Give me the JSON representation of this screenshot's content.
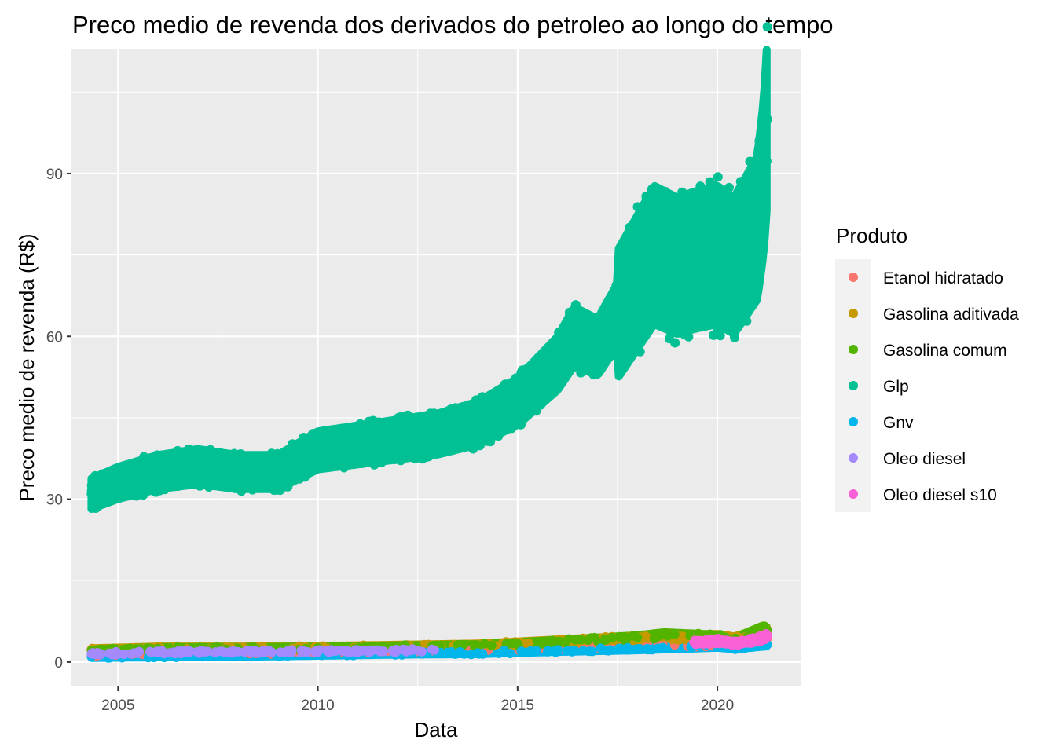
{
  "chart_data": {
    "type": "scatter",
    "title": "Preco medio de revenda dos derivados do petroleo ao longo do tempo",
    "xlabel": "Data",
    "ylabel": "Preco medio de revenda (R$)",
    "x_ticks": [
      "2005",
      "2010",
      "2015",
      "2020"
    ],
    "y_ticks": [
      "0",
      "30",
      "60",
      "90"
    ],
    "xlim": [
      "2003-11-01",
      "2022-02-01"
    ],
    "ylim": [
      -4.5,
      113
    ],
    "grid": true,
    "background": "#ebebeb",
    "legend": {
      "title": "Produto",
      "position": "right"
    },
    "series": [
      {
        "name": "Etanol hidratado",
        "color": "#F8766D",
        "points": [
          [
            "2004-05-01",
            1.3
          ],
          [
            "2006-01-01",
            1.8
          ],
          [
            "2008-01-01",
            1.6
          ],
          [
            "2010-01-01",
            1.7
          ],
          [
            "2012-01-01",
            2.1
          ],
          [
            "2014-01-01",
            2.2
          ],
          [
            "2016-01-01",
            2.6
          ],
          [
            "2018-01-01",
            2.9
          ],
          [
            "2019-06-01",
            3.1
          ],
          [
            "2020-03-01",
            3.3
          ],
          [
            "2020-06-01",
            2.7
          ],
          [
            "2021-04-01",
            4.4
          ]
        ]
      },
      {
        "name": "Gasolina aditivada",
        "color": "#C49A00",
        "points": [
          [
            "2004-05-01",
            2.3
          ],
          [
            "2006-01-01",
            2.6
          ],
          [
            "2008-01-01",
            2.6
          ],
          [
            "2010-01-01",
            2.7
          ],
          [
            "2012-01-01",
            2.9
          ],
          [
            "2014-01-01",
            3.1
          ],
          [
            "2016-01-01",
            3.8
          ],
          [
            "2018-01-01",
            4.4
          ],
          [
            "2020-01-01",
            4.7
          ],
          [
            "2020-06-01",
            4.3
          ],
          [
            "2021-04-01",
            5.9
          ]
        ]
      },
      {
        "name": "Gasolina comum",
        "color": "#53B400",
        "points": [
          [
            "2004-05-01",
            2.1
          ],
          [
            "2006-01-01",
            2.5
          ],
          [
            "2008-01-01",
            2.5
          ],
          [
            "2010-01-01",
            2.6
          ],
          [
            "2012-01-01",
            2.8
          ],
          [
            "2014-01-01",
            3.0
          ],
          [
            "2016-01-01",
            3.7
          ],
          [
            "2018-01-01",
            4.5
          ],
          [
            "2018-09-01",
            5.0
          ],
          [
            "2020-01-01",
            4.6
          ],
          [
            "2020-06-01",
            4.1
          ],
          [
            "2021-03-01",
            6.2
          ],
          [
            "2021-04-01",
            5.8
          ]
        ]
      },
      {
        "name": "Glp",
        "color": "#00C094",
        "points": [
          [
            "2004-05-01",
            31
          ],
          [
            "2005-01-01",
            33
          ],
          [
            "2006-01-01",
            35
          ],
          [
            "2007-01-01",
            36
          ],
          [
            "2008-01-01",
            35
          ],
          [
            "2009-01-01",
            35
          ],
          [
            "2010-01-01",
            39
          ],
          [
            "2011-01-01",
            40
          ],
          [
            "2012-01-01",
            41
          ],
          [
            "2013-01-01",
            42
          ],
          [
            "2014-01-01",
            44
          ],
          [
            "2015-01-01",
            48
          ],
          [
            "2016-01-01",
            55
          ],
          [
            "2016-06-01",
            60
          ],
          [
            "2017-01-01",
            58
          ],
          [
            "2017-06-01",
            63
          ],
          [
            "2018-01-01",
            70
          ],
          [
            "2018-06-01",
            75
          ],
          [
            "2019-01-01",
            73
          ],
          [
            "2019-06-01",
            74
          ],
          [
            "2020-01-01",
            75
          ],
          [
            "2020-06-01",
            73
          ],
          [
            "2021-01-01",
            80
          ],
          [
            "2021-03-01",
            90
          ],
          [
            "2021-04-01",
            100
          ]
        ]
      },
      {
        "name": "Gnv",
        "color": "#00B6EB",
        "points": [
          [
            "2004-05-01",
            1.0
          ],
          [
            "2006-01-01",
            1.1
          ],
          [
            "2008-01-01",
            1.2
          ],
          [
            "2010-01-01",
            1.4
          ],
          [
            "2012-01-01",
            1.6
          ],
          [
            "2014-01-01",
            1.7
          ],
          [
            "2016-01-01",
            2.1
          ],
          [
            "2018-01-01",
            2.4
          ],
          [
            "2020-01-01",
            2.9
          ],
          [
            "2020-06-01",
            2.6
          ],
          [
            "2021-04-01",
            3.2
          ]
        ]
      },
      {
        "name": "Oleo diesel",
        "color": "#A58AFF",
        "points": [
          [
            "2004-05-01",
            1.5
          ],
          [
            "2006-01-01",
            1.8
          ],
          [
            "2008-01-01",
            1.9
          ],
          [
            "2010-01-01",
            2.0
          ],
          [
            "2012-01-01",
            2.1
          ],
          [
            "2012-12-01",
            2.2
          ]
        ]
      },
      {
        "name": "Oleo diesel s10",
        "color": "#FB61D7",
        "points": [
          [
            "2019-06-01",
            3.6
          ],
          [
            "2020-01-01",
            3.9
          ],
          [
            "2020-06-01",
            3.4
          ],
          [
            "2021-01-01",
            4.1
          ],
          [
            "2021-04-01",
            4.8
          ]
        ]
      }
    ]
  }
}
